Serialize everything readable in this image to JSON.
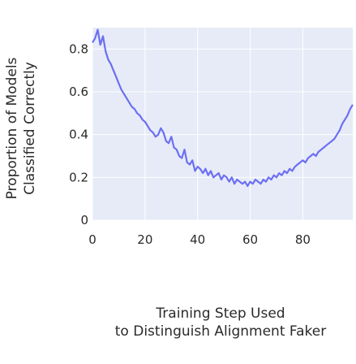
{
  "chart_data": {
    "type": "line",
    "title": "",
    "xlabel": [
      "Training Step Used",
      "to Distinguish Alignment Faker"
    ],
    "ylabel": [
      "Proportion of Models",
      "Classified Correctly"
    ],
    "xlim": [
      0,
      99
    ],
    "ylim": [
      0,
      0.9
    ],
    "xticks": [
      0,
      20,
      40,
      60,
      80
    ],
    "xtick_labels": [
      "0",
      "20",
      "40",
      "60",
      "80"
    ],
    "yticks": [
      0,
      0.2,
      0.4,
      0.6,
      0.8
    ],
    "ytick_labels": [
      "0",
      "0.2",
      "0.4",
      "0.6",
      "0.8"
    ],
    "grid": true,
    "background_color": "#e6ebf7",
    "line_color": "#6c6ff2",
    "series": [
      {
        "x": [
          0,
          1,
          2,
          3,
          4,
          5,
          6,
          7,
          8,
          9,
          10,
          11,
          12,
          13,
          14,
          15,
          16,
          17,
          18,
          19,
          20,
          21,
          22,
          23,
          24,
          25,
          26,
          27,
          28,
          29,
          30,
          31,
          32,
          33,
          34,
          35,
          36,
          37,
          38,
          39,
          40,
          41,
          42,
          43,
          44,
          45,
          46,
          47,
          48,
          49,
          50,
          51,
          52,
          53,
          54,
          55,
          56,
          57,
          58,
          59,
          60,
          61,
          62,
          63,
          64,
          65,
          66,
          67,
          68,
          69,
          70,
          71,
          72,
          73,
          74,
          75,
          76,
          77,
          78,
          79,
          80,
          81,
          82,
          83,
          84,
          85,
          86,
          87,
          88,
          89,
          90,
          91,
          92,
          93,
          94,
          95,
          96,
          97,
          98,
          99
        ],
        "y": [
          0.83,
          0.85,
          0.89,
          0.82,
          0.86,
          0.79,
          0.75,
          0.73,
          0.7,
          0.67,
          0.64,
          0.61,
          0.59,
          0.57,
          0.55,
          0.53,
          0.52,
          0.5,
          0.49,
          0.47,
          0.46,
          0.44,
          0.42,
          0.41,
          0.39,
          0.4,
          0.43,
          0.41,
          0.37,
          0.36,
          0.39,
          0.34,
          0.33,
          0.3,
          0.29,
          0.33,
          0.27,
          0.26,
          0.28,
          0.23,
          0.25,
          0.24,
          0.22,
          0.24,
          0.21,
          0.23,
          0.2,
          0.21,
          0.22,
          0.19,
          0.21,
          0.2,
          0.18,
          0.2,
          0.17,
          0.19,
          0.18,
          0.17,
          0.18,
          0.16,
          0.18,
          0.17,
          0.19,
          0.18,
          0.17,
          0.19,
          0.18,
          0.2,
          0.19,
          0.21,
          0.2,
          0.22,
          0.21,
          0.23,
          0.22,
          0.24,
          0.23,
          0.25,
          0.26,
          0.27,
          0.28,
          0.27,
          0.29,
          0.3,
          0.31,
          0.3,
          0.32,
          0.33,
          0.34,
          0.35,
          0.36,
          0.37,
          0.38,
          0.4,
          0.42,
          0.45,
          0.47,
          0.49,
          0.52,
          0.54
        ]
      }
    ]
  }
}
